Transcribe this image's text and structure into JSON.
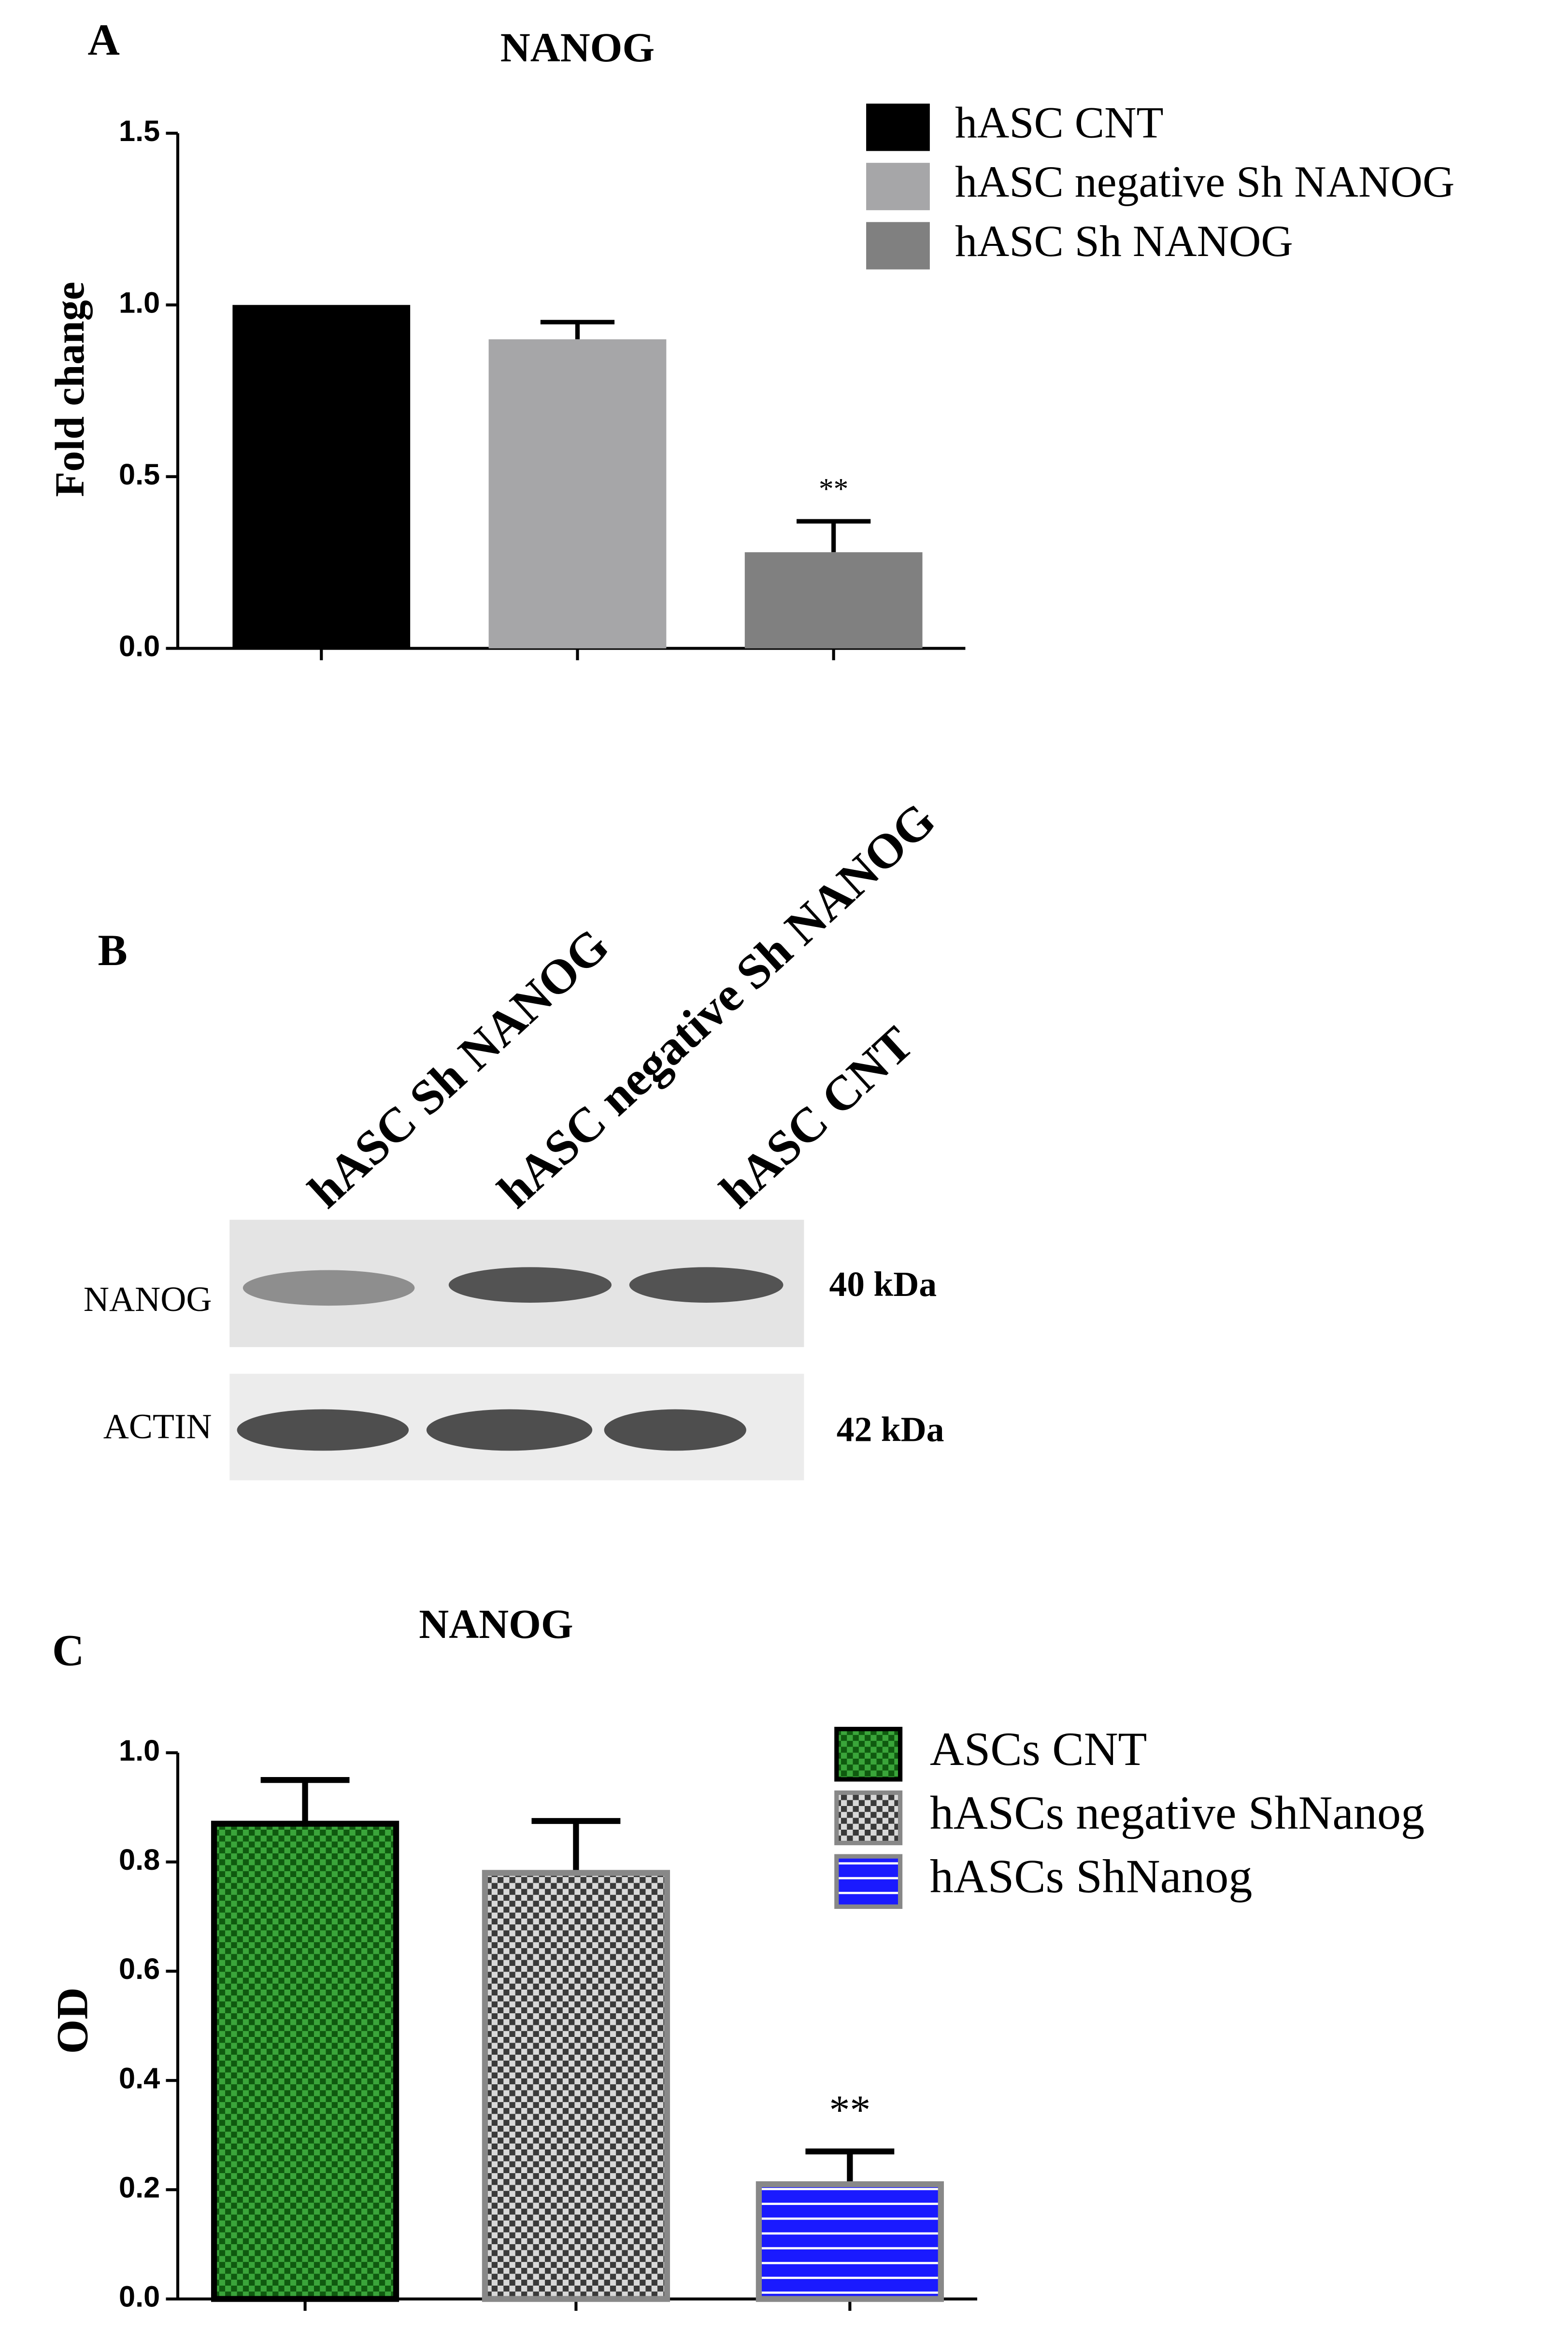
{
  "panel_labels": [
    "A",
    "B",
    "C"
  ],
  "chart_data": [
    {
      "type": "bar",
      "title": "NANOG",
      "y_label": "Fold change",
      "ylim": [
        0,
        1.5
      ],
      "yticks": [
        {
          "value": 0,
          "label": "0.0"
        },
        {
          "value": 0.5,
          "label": "0.5"
        },
        {
          "value": 1,
          "label": "1.0"
        },
        {
          "value": 1.5,
          "label": "1.5"
        }
      ],
      "series": [
        {
          "name": "hASC CNT",
          "color": "#000000",
          "values": [
            1.0
          ]
        },
        {
          "name": "hASC negative Sh NANOG",
          "color": "#a6a6a8",
          "values": [
            0.9
          ],
          "errors": [
            0.05
          ]
        },
        {
          "name": "hASC Sh NANOG",
          "color": "#808080",
          "values": [
            0.28
          ],
          "errors": [
            0.09
          ],
          "annotation": "**"
        }
      ]
    },
    {
      "type": "bar",
      "title": "NANOG",
      "y_label": "OD",
      "ylim": [
        0,
        1.0
      ],
      "yticks": [
        {
          "value": 0,
          "label": "0.0"
        },
        {
          "value": 0.2,
          "label": "0.2"
        },
        {
          "value": 0.4,
          "label": "0.4"
        },
        {
          "value": 0.6,
          "label": "0.6"
        },
        {
          "value": 0.8,
          "label": "0.8"
        },
        {
          "value": 1,
          "label": "1.0"
        }
      ],
      "series": [
        {
          "name": "ASCs CNT",
          "color": "#0f5a0f",
          "hatch": "checker",
          "hatch_color": "#3aa53a",
          "edgecolor": "#000000",
          "values": [
            0.87
          ],
          "errors": [
            0.08
          ]
        },
        {
          "name": "hASCs negative ShNanog",
          "color": "#3a3a3a",
          "hatch": "checker",
          "hatch_color": "#d8d8d8",
          "edgecolor": "#888888",
          "values": [
            0.78
          ],
          "errors": [
            0.095
          ]
        },
        {
          "name": "hASCs ShNanog",
          "color": "#1a1aff",
          "hatch": "stripes",
          "hatch_color": "#ffffff",
          "edgecolor": "#888888",
          "values": [
            0.21
          ],
          "errors": [
            0.06
          ],
          "annotation": "**"
        }
      ]
    }
  ],
  "blot": {
    "lanes": [
      "hASC Sh NANOG",
      "hASC negative Sh NANOG",
      "hASC CNT"
    ],
    "rows": [
      {
        "label": "NANOG",
        "size": "40 kDa"
      },
      {
        "label": "ACTIN",
        "size": "42 kDa"
      }
    ]
  }
}
